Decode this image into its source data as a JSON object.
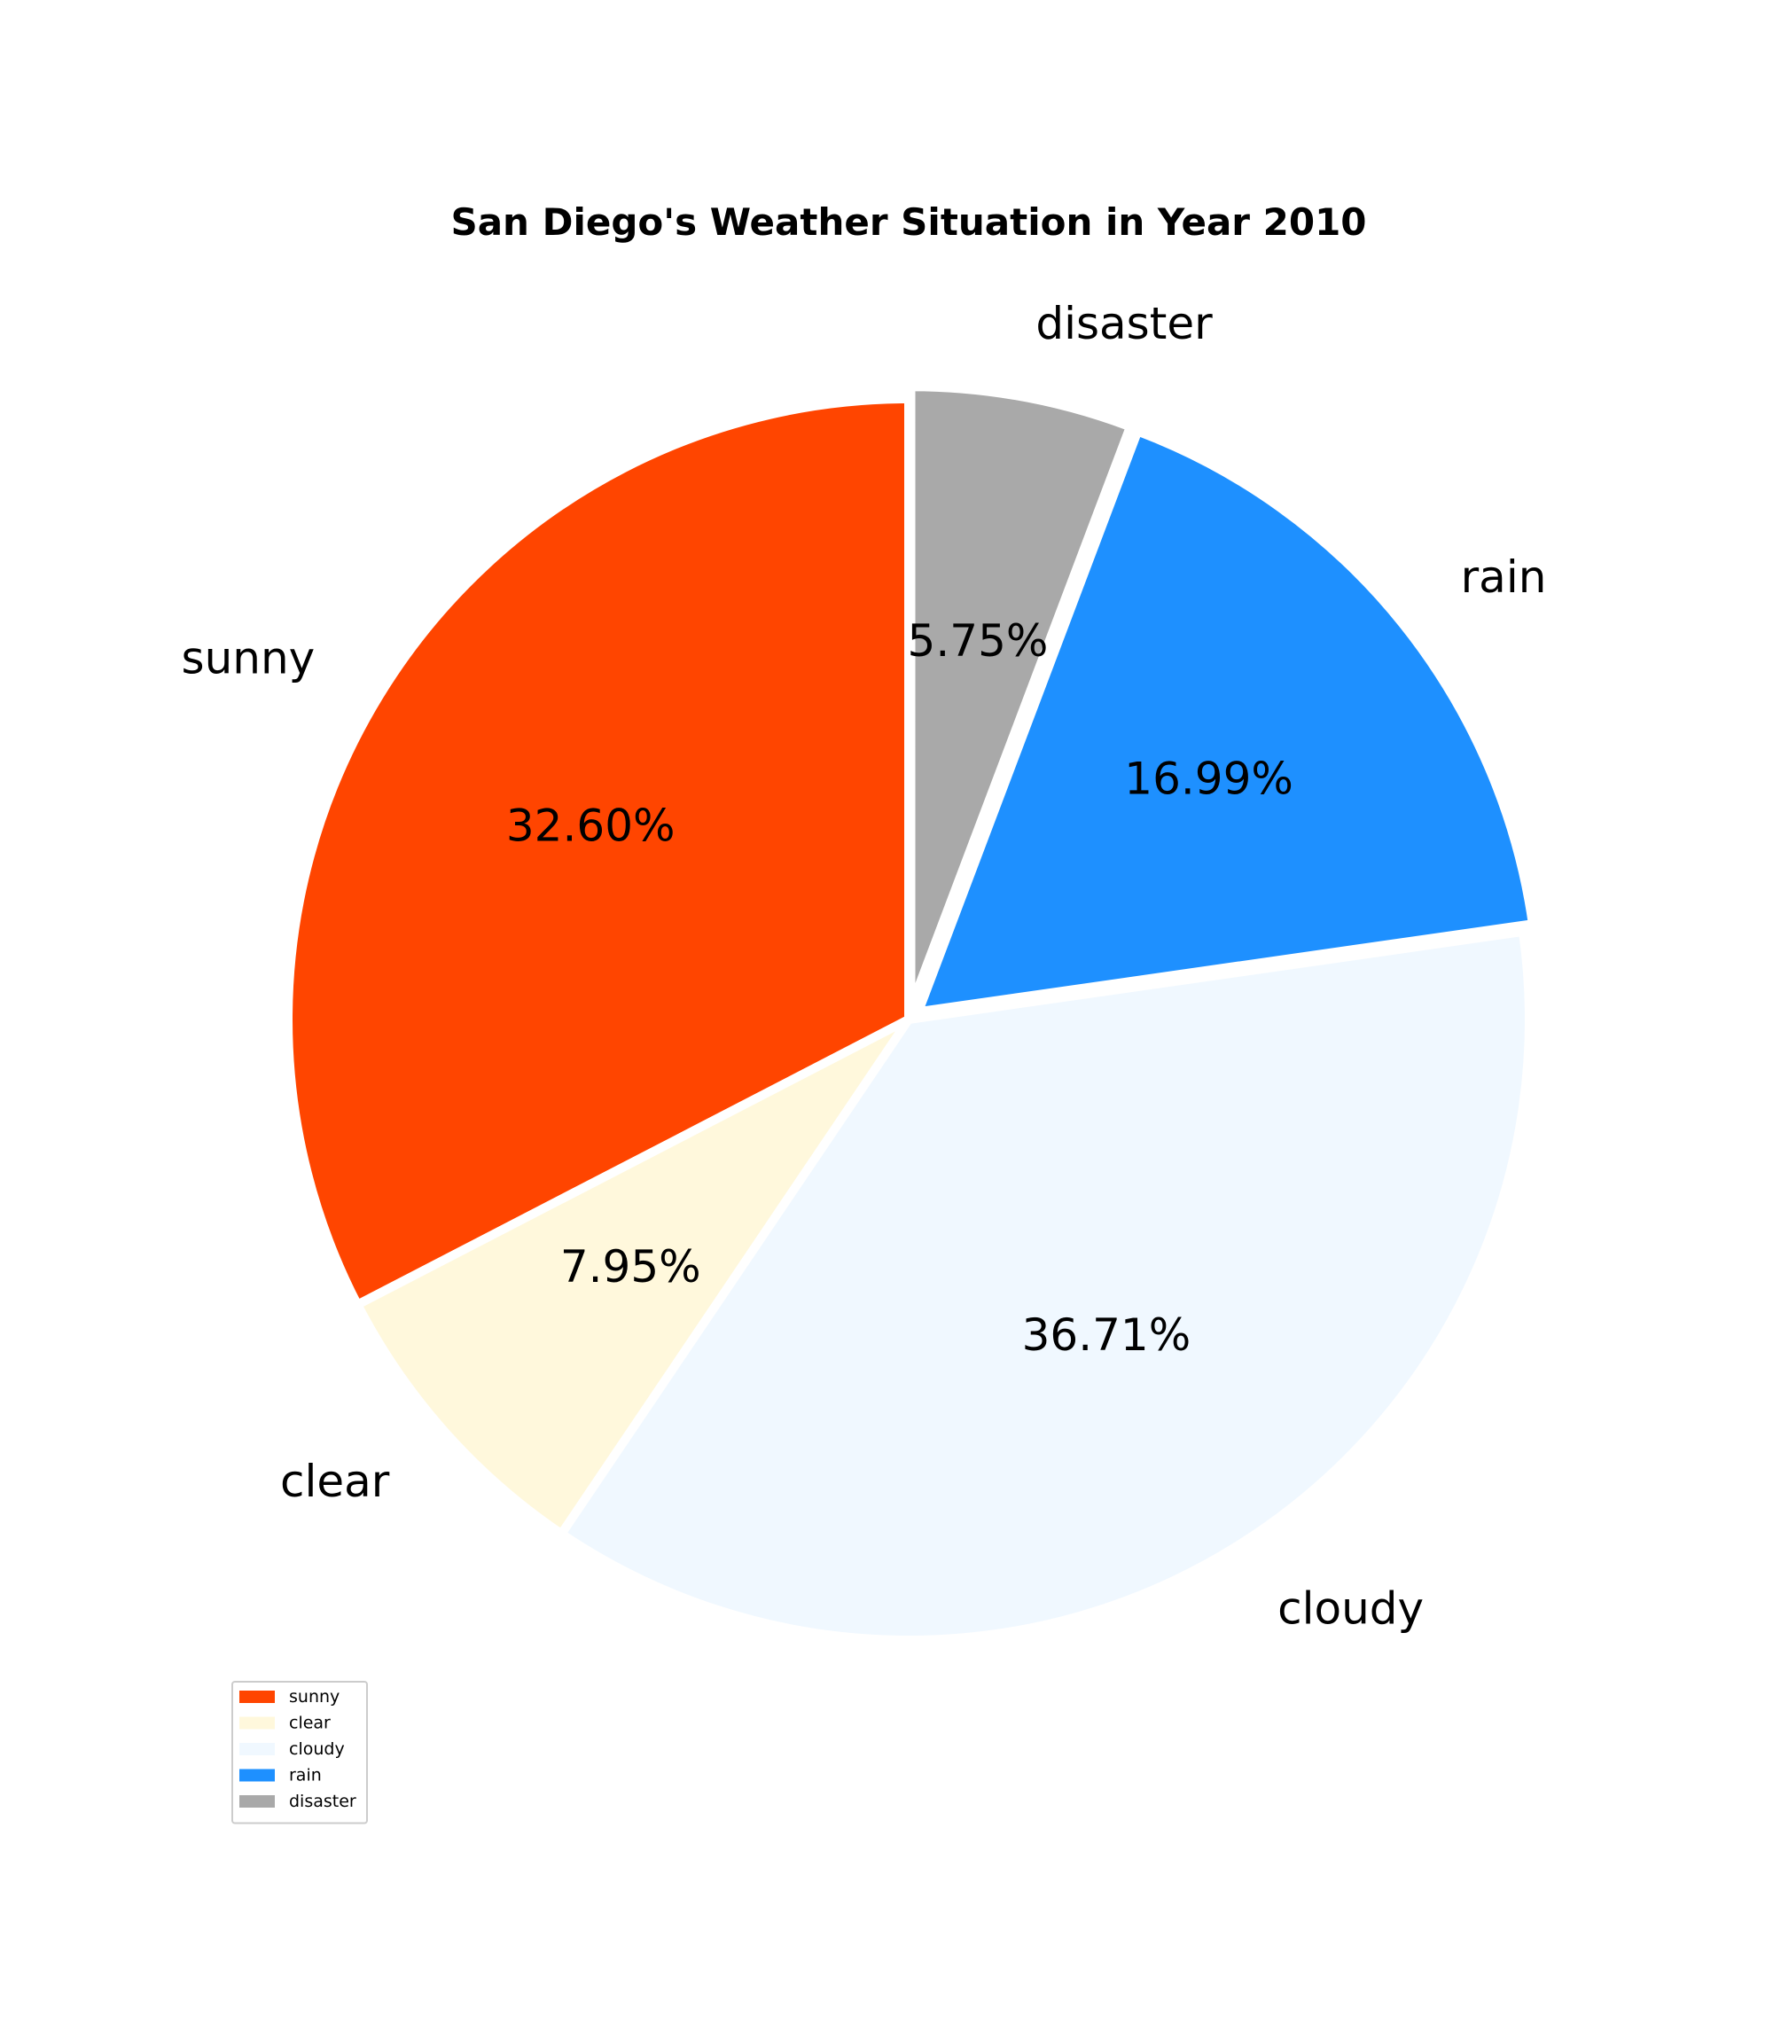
{
  "chart_data": {
    "type": "pie",
    "title": "San Diego's Weather Situation in Year 2010",
    "slices": [
      {
        "label": "sunny",
        "value": 32.6,
        "pct_label": "32.60%",
        "color": "#ff4500"
      },
      {
        "label": "clear",
        "value": 7.95,
        "pct_label": "7.95%",
        "color": "#fff8dc"
      },
      {
        "label": "cloudy",
        "value": 36.71,
        "pct_label": "36.71%",
        "color": "#f0f8ff"
      },
      {
        "label": "rain",
        "value": 16.99,
        "pct_label": "16.99%",
        "color": "#1e90ff"
      },
      {
        "label": "disaster",
        "value": 5.75,
        "pct_label": "5.75%",
        "color": "#a9a9a9"
      }
    ],
    "start_angle_deg": 90,
    "direction": "counterclockwise",
    "exploded": [
      "disaster",
      "rain"
    ],
    "legend": {
      "placement": "lower-left",
      "entries": [
        "sunny",
        "clear",
        "cloudy",
        "rain",
        "disaster"
      ]
    }
  }
}
